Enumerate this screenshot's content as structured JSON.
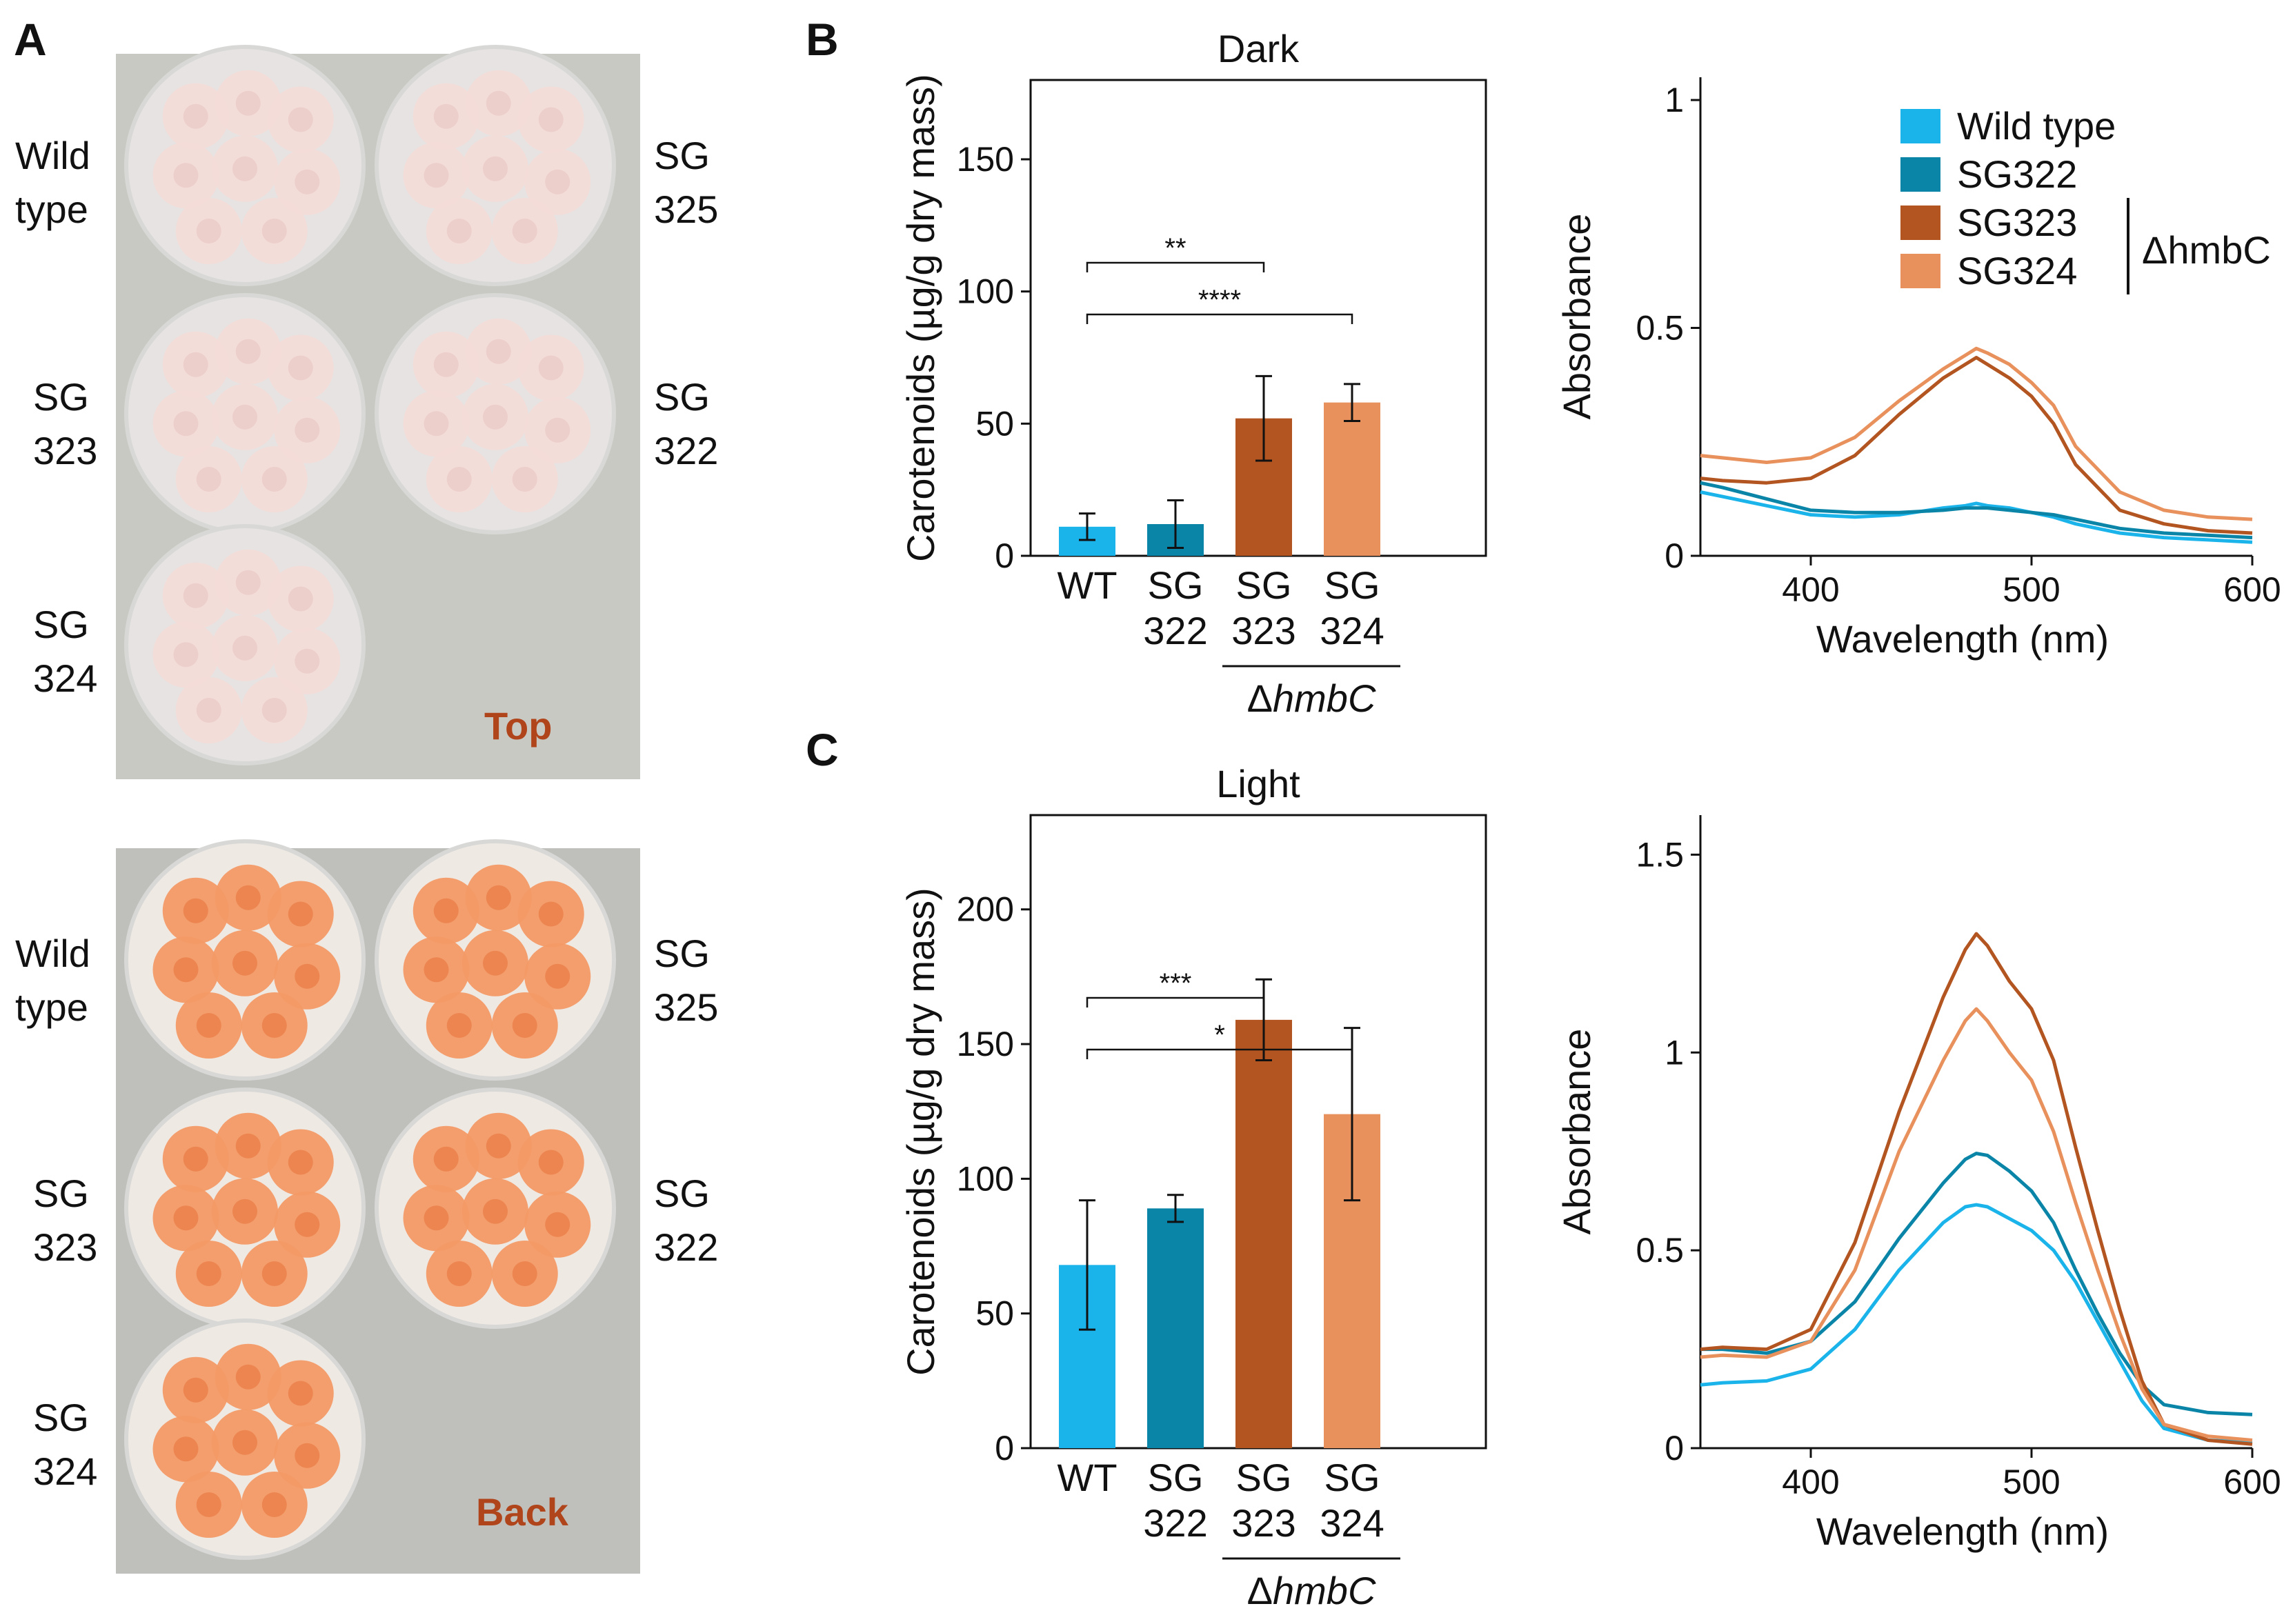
{
  "panel_labels": {
    "a": "A",
    "b": "B",
    "c": "C"
  },
  "photos": {
    "top": {
      "corner_label": "Top",
      "strains": [
        {
          "lines": [
            "Wild",
            "type"
          ]
        },
        {
          "lines": [
            "SG",
            "325"
          ]
        },
        {
          "lines": [
            "SG",
            "323"
          ]
        },
        {
          "lines": [
            "SG",
            "322"
          ]
        },
        {
          "lines": [
            "SG",
            "324"
          ]
        }
      ]
    },
    "back": {
      "corner_label": "Back",
      "strains": [
        {
          "lines": [
            "Wild",
            "type"
          ]
        },
        {
          "lines": [
            "SG",
            "325"
          ]
        },
        {
          "lines": [
            "SG",
            "323"
          ]
        },
        {
          "lines": [
            "SG",
            "322"
          ]
        },
        {
          "lines": [
            "SG",
            "324"
          ]
        }
      ]
    }
  },
  "colors": {
    "wt": "#1ab3ea",
    "sg322": "#0a85a8",
    "sg323": "#b35520",
    "sg324": "#e8915d",
    "plate_top_bg": "#c9c9c4",
    "plate_back_bg": "#bfbfbc",
    "top_colony": "#f3dcd8",
    "back_colony": "#f39a66"
  },
  "chart_data": [
    {
      "id": "B-bar",
      "type": "bar",
      "title": "Dark",
      "ylabel": "Carotenoids (µg/g dry mass)",
      "ylim": [
        0,
        180
      ],
      "yticks": [
        "0",
        "50",
        "100",
        "150"
      ],
      "ytick_values": [
        0,
        50,
        100,
        150
      ],
      "categories": [
        [
          "WT"
        ],
        [
          "SG",
          "322"
        ],
        [
          "SG",
          "323"
        ],
        [
          "SG",
          "324"
        ]
      ],
      "values": [
        11,
        12,
        52,
        58
      ],
      "errors": [
        5,
        9,
        16,
        7
      ],
      "group_label": "ΔhmbC",
      "group_prefix": "Δ",
      "group_name": "hmbC",
      "significance": [
        {
          "from": 0,
          "to": 2,
          "label": "**"
        },
        {
          "from": 0,
          "to": 3,
          "label": "****"
        }
      ]
    },
    {
      "id": "B-line",
      "type": "line",
      "title": "",
      "xlabel": "Wavelength (nm)",
      "ylabel": "Absorbance",
      "xlim": [
        350,
        600
      ],
      "ylim": [
        0,
        1.05
      ],
      "xticks": [
        "400",
        "500",
        "600"
      ],
      "xtick_values": [
        400,
        500,
        600
      ],
      "yticks": [
        "0",
        "0.5",
        "1"
      ],
      "ytick_values": [
        0,
        0.5,
        1
      ],
      "x": [
        350,
        360,
        380,
        400,
        420,
        440,
        460,
        470,
        475,
        480,
        490,
        500,
        510,
        520,
        540,
        560,
        580,
        600
      ],
      "series": [
        {
          "name": "Wild type",
          "values": [
            0.14,
            0.13,
            0.11,
            0.09,
            0.085,
            0.09,
            0.105,
            0.11,
            0.115,
            0.11,
            0.105,
            0.095,
            0.085,
            0.07,
            0.05,
            0.04,
            0.035,
            0.03
          ]
        },
        {
          "name": "SG322",
          "values": [
            0.16,
            0.15,
            0.125,
            0.1,
            0.095,
            0.095,
            0.1,
            0.105,
            0.105,
            0.105,
            0.1,
            0.095,
            0.09,
            0.08,
            0.06,
            0.05,
            0.045,
            0.04
          ]
        },
        {
          "name": "SG323",
          "values": [
            0.17,
            0.165,
            0.16,
            0.17,
            0.22,
            0.31,
            0.39,
            0.42,
            0.435,
            0.42,
            0.39,
            0.35,
            0.29,
            0.2,
            0.1,
            0.07,
            0.055,
            0.05
          ]
        },
        {
          "name": "SG324",
          "values": [
            0.22,
            0.215,
            0.205,
            0.215,
            0.26,
            0.34,
            0.41,
            0.44,
            0.455,
            0.445,
            0.42,
            0.38,
            0.33,
            0.24,
            0.14,
            0.1,
            0.085,
            0.08
          ]
        }
      ],
      "legend": {
        "entries": [
          "Wild type",
          "SG322",
          "SG323",
          "SG324"
        ],
        "bracket_label": "ΔhmbC"
      }
    },
    {
      "id": "C-bar",
      "type": "bar",
      "title": "Light",
      "ylabel": "Carotenoids (µg/g dry mass)",
      "ylim": [
        0,
        235
      ],
      "yticks": [
        "0",
        "50",
        "100",
        "150",
        "200"
      ],
      "ytick_values": [
        0,
        50,
        100,
        150,
        200
      ],
      "categories": [
        [
          "WT"
        ],
        [
          "SG",
          "322"
        ],
        [
          "SG",
          "323"
        ],
        [
          "SG",
          "324"
        ]
      ],
      "values": [
        68,
        89,
        159,
        124
      ],
      "errors": [
        24,
        5,
        15,
        32
      ],
      "group_label": "ΔhmbC",
      "group_prefix": "Δ",
      "group_name": "hmbC",
      "significance": [
        {
          "from": 0,
          "to": 2,
          "label": "***"
        },
        {
          "from": 0,
          "to": 3,
          "label": "*"
        }
      ]
    },
    {
      "id": "C-line",
      "type": "line",
      "title": "",
      "xlabel": "Wavelength (nm)",
      "ylabel": "Absorbance",
      "xlim": [
        350,
        600
      ],
      "ylim": [
        0,
        1.6
      ],
      "xticks": [
        "400",
        "500",
        "600"
      ],
      "xtick_values": [
        400,
        500,
        600
      ],
      "yticks": [
        "0",
        "0.5",
        "1",
        "1.5"
      ],
      "ytick_values": [
        0,
        0.5,
        1,
        1.5
      ],
      "x": [
        350,
        360,
        380,
        400,
        420,
        440,
        460,
        470,
        475,
        480,
        490,
        500,
        510,
        520,
        530,
        540,
        550,
        560,
        580,
        600
      ],
      "series": [
        {
          "name": "Wild type",
          "values": [
            0.16,
            0.165,
            0.17,
            0.2,
            0.3,
            0.45,
            0.57,
            0.61,
            0.615,
            0.61,
            0.58,
            0.55,
            0.5,
            0.42,
            0.32,
            0.22,
            0.12,
            0.05,
            0.02,
            0.015
          ]
        },
        {
          "name": "SG322",
          "values": [
            0.25,
            0.25,
            0.24,
            0.27,
            0.37,
            0.53,
            0.67,
            0.73,
            0.745,
            0.74,
            0.7,
            0.65,
            0.57,
            0.45,
            0.34,
            0.24,
            0.16,
            0.11,
            0.09,
            0.085
          ]
        },
        {
          "name": "SG323",
          "values": [
            0.25,
            0.255,
            0.25,
            0.3,
            0.52,
            0.85,
            1.14,
            1.26,
            1.3,
            1.27,
            1.18,
            1.11,
            0.98,
            0.76,
            0.55,
            0.35,
            0.17,
            0.06,
            0.02,
            0.01
          ]
        },
        {
          "name": "SG324",
          "values": [
            0.23,
            0.235,
            0.23,
            0.27,
            0.45,
            0.75,
            0.98,
            1.08,
            1.11,
            1.08,
            1.0,
            0.93,
            0.8,
            0.62,
            0.45,
            0.29,
            0.15,
            0.06,
            0.03,
            0.02
          ]
        }
      ]
    }
  ]
}
